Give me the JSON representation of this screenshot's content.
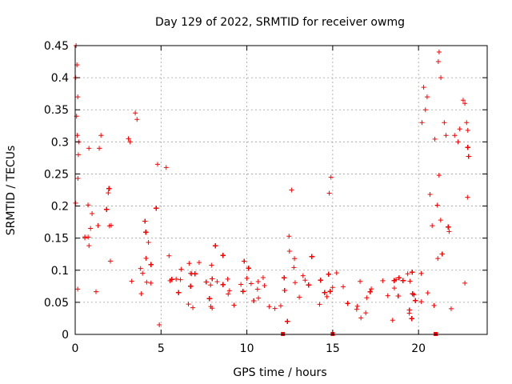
{
  "chart_data": {
    "type": "scatter",
    "title": "Day 129 of 2022, SRMTID for receiver owmg",
    "xlabel": "GPS time / hours",
    "ylabel": "SRMTID / TECUs",
    "xlim": [
      0,
      24
    ],
    "ylim": [
      0,
      0.45
    ],
    "x_ticks": [
      0,
      5,
      10,
      15,
      20
    ],
    "x_tick_labels": [
      "0",
      "5",
      "10",
      "15",
      "20"
    ],
    "y_ticks": [
      0,
      0.05,
      0.1,
      0.15,
      0.2,
      0.25,
      0.3,
      0.35,
      0.4,
      0.45
    ],
    "y_tick_labels": [
      "0",
      "0.05",
      "0.1",
      "0.15",
      "0.2",
      "0.25",
      "0.3",
      "0.35",
      "0.4",
      "0.45"
    ],
    "grid": true,
    "marker": "+",
    "color": "#ff0000",
    "envelope_hours": [
      0,
      0.5,
      1,
      2,
      3,
      4,
      5,
      6,
      7,
      8,
      9,
      10,
      11,
      12,
      12.5,
      13,
      14,
      15,
      16,
      17,
      18,
      19,
      20,
      20.5,
      21,
      21.5,
      22,
      22.5,
      23
    ],
    "envelope_median": [
      0.22,
      0.17,
      0.15,
      0.15,
      0.13,
      0.12,
      0.1,
      0.09,
      0.085,
      0.08,
      0.08,
      0.075,
      0.065,
      0.06,
      0.1,
      0.07,
      0.08,
      0.06,
      0.05,
      0.045,
      0.065,
      0.07,
      0.07,
      0.14,
      0.15,
      0.16,
      0.18,
      0.22,
      0.25
    ],
    "envelope_spread": [
      0.06,
      0.05,
      0.045,
      0.045,
      0.04,
      0.035,
      0.03,
      0.025,
      0.025,
      0.025,
      0.025,
      0.02,
      0.02,
      0.02,
      0.03,
      0.025,
      0.025,
      0.02,
      0.02,
      0.015,
      0.02,
      0.02,
      0.025,
      0.06,
      0.06,
      0.05,
      0.05,
      0.05,
      0.04
    ],
    "outliers": [
      {
        "x": 0.05,
        "y": 0.45
      },
      {
        "x": 0.1,
        "y": 0.42
      },
      {
        "x": 0.02,
        "y": 0.4
      },
      {
        "x": 0.15,
        "y": 0.37
      },
      {
        "x": 0.08,
        "y": 0.34
      },
      {
        "x": 0.12,
        "y": 0.31
      },
      {
        "x": 0.2,
        "y": 0.3
      },
      {
        "x": 0.18,
        "y": 0.28
      },
      {
        "x": 3.5,
        "y": 0.345
      },
      {
        "x": 3.6,
        "y": 0.335
      },
      {
        "x": 3.1,
        "y": 0.305
      },
      {
        "x": 3.2,
        "y": 0.3
      },
      {
        "x": 1.5,
        "y": 0.31
      },
      {
        "x": 1.4,
        "y": 0.29
      },
      {
        "x": 0.8,
        "y": 0.29
      },
      {
        "x": 4.8,
        "y": 0.265
      },
      {
        "x": 5.3,
        "y": 0.26
      },
      {
        "x": 4.9,
        "y": 0.015
      },
      {
        "x": 12.6,
        "y": 0.225
      },
      {
        "x": 14.9,
        "y": 0.245
      },
      {
        "x": 14.8,
        "y": 0.22
      },
      {
        "x": 20.3,
        "y": 0.385
      },
      {
        "x": 20.5,
        "y": 0.37
      },
      {
        "x": 20.4,
        "y": 0.35
      },
      {
        "x": 20.2,
        "y": 0.33
      },
      {
        "x": 21.2,
        "y": 0.44
      },
      {
        "x": 21.15,
        "y": 0.425
      },
      {
        "x": 21.3,
        "y": 0.4
      },
      {
        "x": 21.5,
        "y": 0.33
      },
      {
        "x": 21.6,
        "y": 0.31
      },
      {
        "x": 22.6,
        "y": 0.365
      },
      {
        "x": 22.7,
        "y": 0.36
      },
      {
        "x": 22.8,
        "y": 0.33
      },
      {
        "x": 22.4,
        "y": 0.32
      },
      {
        "x": 22.1,
        "y": 0.31
      },
      {
        "x": 22.3,
        "y": 0.3
      },
      {
        "x": 22.7,
        "y": 0.08
      },
      {
        "x": 21.9,
        "y": 0.04
      },
      {
        "x": 20.9,
        "y": 0.045
      }
    ],
    "gap_markers_hours": [
      12.1,
      15.0,
      21.0
    ]
  }
}
